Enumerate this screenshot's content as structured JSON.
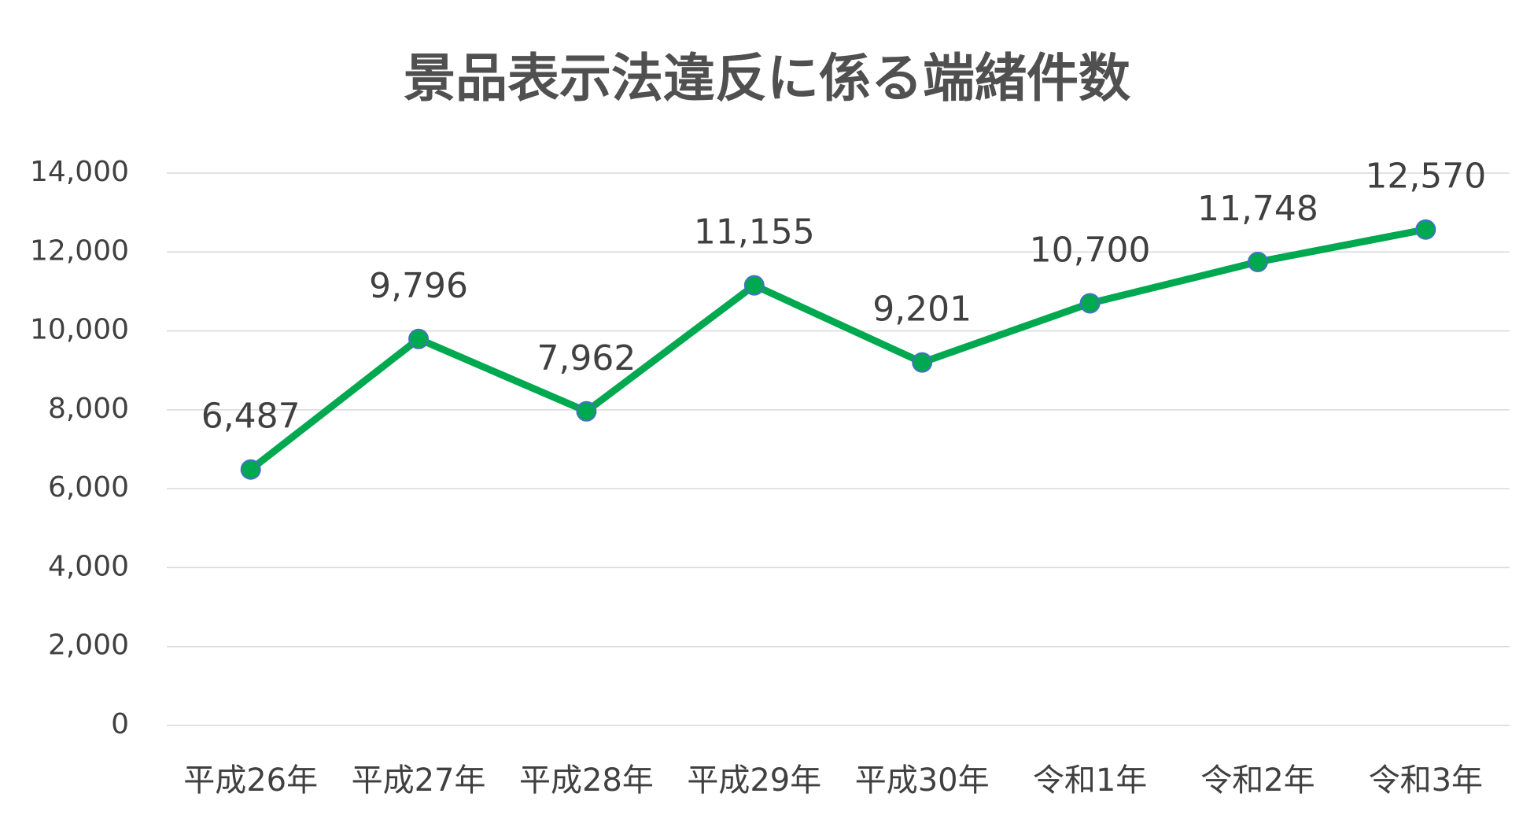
{
  "chart_data": {
    "type": "line",
    "title": "景品表示法違反に係る端緒件数",
    "categories": [
      "平成26年",
      "平成27年",
      "平成28年",
      "平成29年",
      "平成30年",
      "令和1年",
      "令和2年",
      "令和3年"
    ],
    "values": [
      6487,
      9796,
      7962,
      11155,
      9201,
      10700,
      11748,
      12570
    ],
    "value_labels": [
      "6,487",
      "9,796",
      "7,962",
      "11,155",
      "9,201",
      "10,700",
      "11,748",
      "12,570"
    ],
    "color": "#00a84f",
    "marker_edge_color": "#4472c4",
    "ylim": [
      0,
      14000
    ],
    "yticks": [
      0,
      {
        "value": 2000,
        "label": "2,000"
      },
      {
        "value": 4000,
        "label": "4,000"
      },
      {
        "value": 6000,
        "label": "6,000"
      },
      {
        "value": 8000,
        "label": "8,000"
      },
      {
        "value": 10000,
        "label": "10,000"
      },
      {
        "value": 12000,
        "label": "12,000"
      },
      {
        "value": 14000,
        "label": "14,000"
      }
    ],
    "grid": true
  }
}
